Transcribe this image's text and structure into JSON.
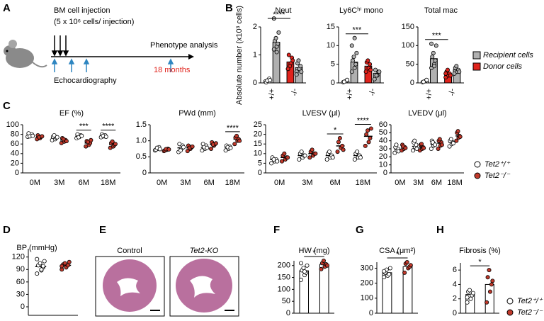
{
  "panel_labels": [
    "A",
    "B",
    "C",
    "D",
    "E",
    "F",
    "G",
    "H"
  ],
  "schematic": {
    "injection": "BM cell injection",
    "dose": "(5 x 10⁶ cells/ injection)",
    "echo": "Echocardiography",
    "phenotype": "Phenotype analysis",
    "time": "18 months"
  },
  "histology": {
    "control": "Control",
    "knockout": "Tet2-KO"
  },
  "chart_data": [
    {
      "type": "bar",
      "title": "Neut",
      "ylabel": "Absolute number (x10³ cells)",
      "categories": [
        "+/+",
        "-/-"
      ],
      "ylim": [
        0,
        2
      ],
      "yticks": [
        0,
        1,
        2
      ],
      "significance": "****",
      "series": [
        {
          "name": "Recipient cells",
          "color": "#b0b0b0",
          "values": [
            1.45,
            0.55
          ],
          "points": [
            [
              1.2,
              1.3,
              1.4,
              1.5,
              1.6,
              1.8,
              2.3,
              1.1
            ],
            [
              0.4,
              0.5,
              0.6,
              0.7,
              0.8,
              0.4,
              0.3
            ]
          ]
        },
        {
          "name": "Donor cells",
          "color": "#e0231c",
          "colors": [
            "#ffffff",
            "#e0231c"
          ],
          "values": [
            0.08,
            0.75
          ],
          "points": [
            [
              0.05,
              0.1,
              0.15,
              0.02,
              0.08,
              0.1
            ],
            [
              0.5,
              0.7,
              0.9,
              1.0,
              0.6,
              0.8,
              0.5
            ]
          ]
        }
      ]
    },
    {
      "type": "bar",
      "title": "Ly6Cʰⁱ mono",
      "categories": [
        "+/+",
        "-/-"
      ],
      "ylim": [
        0,
        15
      ],
      "yticks": [
        0,
        5,
        10,
        15
      ],
      "significance": "***",
      "series": [
        {
          "color": "#b0b0b0",
          "values": [
            5.6,
            2.6
          ],
          "points": [
            [
              3,
              4,
              5,
              6,
              7,
              8,
              10,
              12
            ],
            [
              1,
              2,
              3,
              3.5,
              2,
              3
            ]
          ]
        },
        {
          "colors": [
            "#ffffff",
            "#e0231c"
          ],
          "values": [
            0.5,
            4.5
          ],
          "points": [
            [
              0.2,
              0.5,
              0.8,
              0.3
            ],
            [
              3,
              4,
              5,
              5.5,
              6,
              3.5
            ]
          ]
        }
      ]
    },
    {
      "type": "bar",
      "title": "Total mac",
      "categories": [
        "+/+",
        "-/-"
      ],
      "ylim": [
        0,
        150
      ],
      "yticks": [
        0,
        50,
        100,
        150
      ],
      "significance": "***",
      "series": [
        {
          "color": "#b0b0b0",
          "values": [
            65,
            35
          ],
          "points": [
            [
              40,
              50,
              60,
              70,
              80,
              100,
              105,
              45
            ],
            [
              25,
              30,
              35,
              40,
              45,
              30
            ]
          ]
        },
        {
          "colors": [
            "#ffffff",
            "#e0231c"
          ],
          "values": [
            4,
            25
          ],
          "points": [
            [
              2,
              5,
              8,
              3
            ],
            [
              15,
              20,
              25,
              30,
              35,
              20,
              25
            ]
          ]
        }
      ]
    },
    {
      "type": "strip",
      "title": "EF (%)",
      "categories": [
        "0M",
        "3M",
        "6M",
        "18M"
      ],
      "ylim": [
        0,
        100
      ],
      "yticks": [
        0,
        20,
        40,
        60,
        80,
        100
      ],
      "significance": [
        null,
        null,
        "***",
        "****"
      ],
      "series": [
        {
          "color": "#ffffff",
          "values": [
            78,
            73,
            76,
            77
          ],
          "points": [
            [
              75,
              78,
              80,
              82,
              76,
              77
            ],
            [
              68,
              70,
              73,
              75,
              78,
              74
            ],
            [
              72,
              75,
              78,
              80,
              74,
              77
            ],
            [
              74,
              76,
              78,
              80,
              77,
              75
            ]
          ]
        },
        {
          "color": "#c0392b",
          "values": [
            74,
            68,
            62,
            59
          ],
          "points": [
            [
              70,
              72,
              75,
              78,
              74,
              76
            ],
            [
              62,
              65,
              68,
              72,
              70,
              66
            ],
            [
              55,
              58,
              62,
              66,
              64,
              68
            ],
            [
              52,
              55,
              58,
              62,
              65,
              60
            ]
          ]
        }
      ]
    },
    {
      "type": "strip",
      "title": "PWd (mm)",
      "categories": [
        "0M",
        "3M",
        "6M",
        "18M"
      ],
      "ylim": [
        0,
        1.5
      ],
      "yticks": [
        0,
        0.5,
        {
          "value": 1,
          "label": "1.0"
        },
        1.5
      ],
      "significance": [
        null,
        null,
        null,
        "****"
      ],
      "series": [
        {
          "color": "#ffffff",
          "values": [
            0.75,
            0.78,
            0.8,
            0.8
          ],
          "points": [
            [
              0.7,
              0.75,
              0.8,
              0.72,
              0.78,
              0.74
            ],
            [
              0.65,
              0.75,
              0.85,
              0.9,
              0.7,
              0.8
            ],
            [
              0.7,
              0.75,
              0.85,
              0.9,
              0.8,
              0.78
            ],
            [
              0.7,
              0.75,
              0.82,
              0.85,
              0.8,
              0.78
            ]
          ]
        },
        {
          "color": "#c0392b",
          "values": [
            0.72,
            0.78,
            0.88,
            1.05
          ],
          "points": [
            [
              0.68,
              0.72,
              0.75,
              0.7,
              0.74,
              0.73
            ],
            [
              0.68,
              0.75,
              0.8,
              0.85,
              0.78,
              0.82
            ],
            [
              0.75,
              0.85,
              0.9,
              0.95,
              0.88,
              0.92
            ],
            [
              0.9,
              1.0,
              1.05,
              1.1,
              1.15,
              1.0
            ]
          ]
        }
      ]
    },
    {
      "type": "strip",
      "title": "LVESV (μl)",
      "categories": [
        "0M",
        "3M",
        "6M",
        "18M"
      ],
      "ylim": [
        0,
        25
      ],
      "yticks": [
        0,
        5,
        10,
        15,
        20,
        25
      ],
      "significance": [
        null,
        null,
        "*",
        "****"
      ],
      "series": [
        {
          "color": "#ffffff",
          "values": [
            7,
            9,
            9,
            9
          ],
          "points": [
            [
              5,
              6,
              7,
              8,
              7,
              6
            ],
            [
              7,
              8,
              9,
              10,
              11,
              9
            ],
            [
              7,
              8,
              9,
              10,
              11,
              8
            ],
            [
              7,
              8,
              9,
              10,
              11,
              8
            ]
          ]
        },
        {
          "color": "#c0392b",
          "values": [
            8,
            10,
            14,
            19
          ],
          "points": [
            [
              6,
              7,
              8,
              9,
              10,
              8
            ],
            [
              8,
              9,
              10,
              11,
              12,
              10
            ],
            [
              11,
              13,
              14,
              16,
              18,
              12
            ],
            [
              14,
              16,
              18,
              20,
              22,
              23
            ]
          ]
        }
      ]
    },
    {
      "type": "strip",
      "title": "LVEDV (μl)",
      "categories": [
        "0M",
        "3M",
        "6M",
        "18M"
      ],
      "ylim": [
        0,
        60
      ],
      "yticks": [
        0,
        10,
        20,
        30,
        40,
        50,
        60
      ],
      "series": [
        {
          "name": "Tet2⁺/⁺",
          "color": "#ffffff",
          "values": [
            30,
            33,
            36,
            38
          ],
          "points": [
            [
              25,
              28,
              30,
              32,
              35,
              27
            ],
            [
              28,
              32,
              35,
              38,
              40,
              30
            ],
            [
              30,
              34,
              36,
              40,
              38,
              35
            ],
            [
              33,
              36,
              38,
              40,
              42,
              37
            ]
          ]
        },
        {
          "name": "Tet2⁻/⁻",
          "color": "#c0392b",
          "values": [
            32,
            32,
            37,
            46
          ],
          "points": [
            [
              28,
              30,
              32,
              35,
              33,
              31
            ],
            [
              28,
              30,
              32,
              35,
              36,
              31
            ],
            [
              30,
              34,
              38,
              40,
              42,
              35
            ],
            [
              40,
              44,
              46,
              50,
              52,
              45
            ]
          ]
        }
      ]
    },
    {
      "type": "strip",
      "title": "BP (mmHg)",
      "categories": [
        null,
        null
      ],
      "values": [
        97,
        100
      ],
      "colors": [
        "#ffffff",
        "#c0392b"
      ],
      "points": [
        [
          80,
          88,
          95,
          100,
          105,
          110,
          115,
          90,
          98
        ],
        [
          90,
          95,
          100,
          102,
          105,
          108,
          98
        ]
      ],
      "ylim": [
        0,
        140
      ],
      "yticks": [
        0,
        30,
        60,
        90,
        120
      ]
    },
    {
      "type": "bar",
      "title": "HW (mg)",
      "categories": [
        null,
        null
      ],
      "values": [
        178,
        205
      ],
      "colors": [
        "#ffffff",
        "#c0392b"
      ],
      "points": [
        [
          140,
          160,
          170,
          180,
          190,
          200,
          210,
          175
        ],
        [
          185,
          195,
          205,
          210,
          220,
          200
        ]
      ],
      "ylim": [
        0,
        220
      ],
      "yticks": [
        0,
        50,
        100,
        150,
        200
      ],
      "significance": "*"
    },
    {
      "type": "bar",
      "title": "CSA (μm²)",
      "categories": [
        null,
        null
      ],
      "values": [
        270,
        310
      ],
      "colors": [
        "#ffffff",
        "#c0392b"
      ],
      "points": [
        [
          240,
          250,
          260,
          270,
          290,
          300,
          280
        ],
        [
          270,
          300,
          310,
          330,
          340,
          320
        ]
      ],
      "ylim": [
        0,
        340
      ],
      "yticks": [
        0,
        100,
        200,
        300
      ],
      "significance": "*"
    },
    {
      "type": "bar",
      "title": "Fibrosis (%)",
      "categories": [
        "Tet2⁺/⁺",
        "Tet2⁻/⁻"
      ],
      "values": [
        2.6,
        4.0
      ],
      "colors": [
        "#ffffff",
        "#c0392b"
      ],
      "points": [
        [
          1.5,
          2,
          2.5,
          3,
          3.2,
          2.8,
          2.2
        ],
        [
          1.5,
          3,
          4,
          5,
          6,
          4.5
        ]
      ],
      "ylim": [
        0,
        7
      ],
      "yticks": [
        0,
        2,
        4,
        6
      ],
      "significance": "*"
    }
  ]
}
